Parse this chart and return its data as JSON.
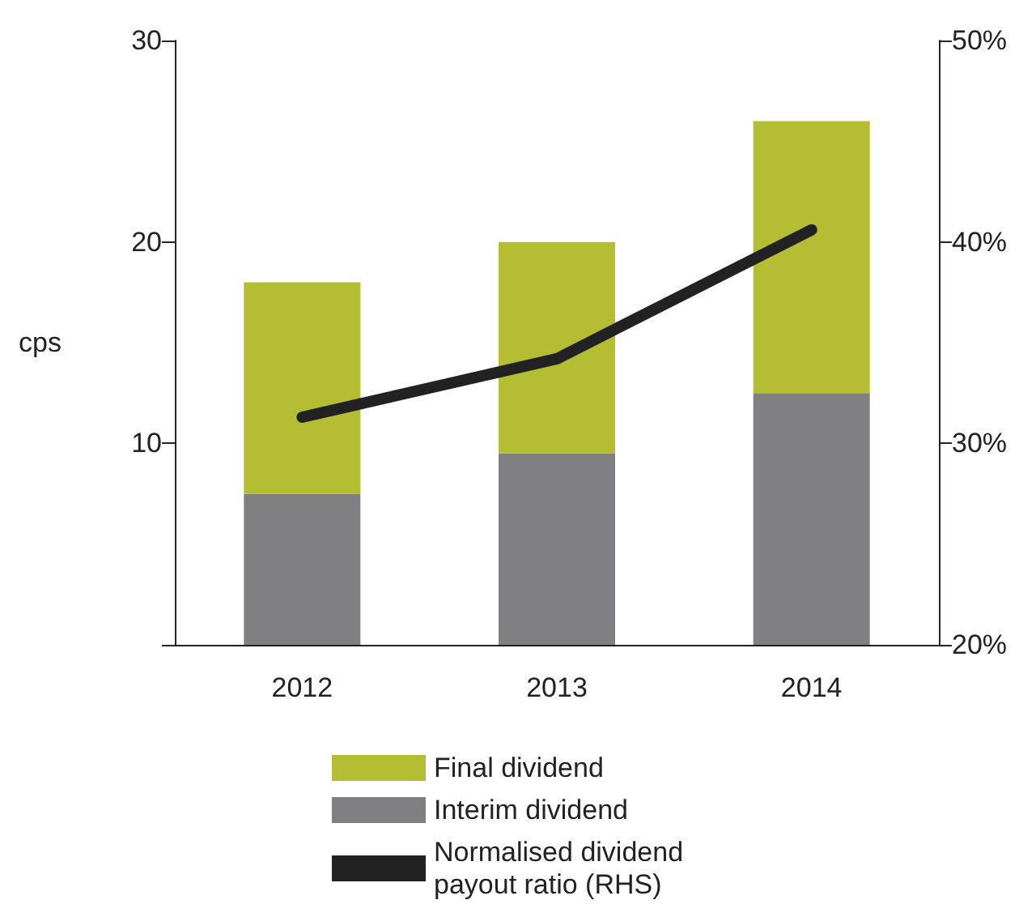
{
  "chart_data": {
    "type": "bar",
    "stacked": true,
    "categories": [
      "2012",
      "2013",
      "2014"
    ],
    "ylabel": "cps",
    "ylim": [
      0,
      30
    ],
    "yticks": [
      {
        "value": 0,
        "label": null
      },
      10,
      20,
      30
    ],
    "y2lim": [
      20,
      50
    ],
    "y2ticks": [
      {
        "value": 20,
        "label": "20%"
      },
      {
        "value": 30,
        "label": "30%"
      },
      {
        "value": 40,
        "label": "40%"
      },
      {
        "value": 50,
        "label": "50%"
      }
    ],
    "legend": "bottom",
    "grid": false,
    "series": [
      {
        "name": "Interim dividend",
        "color": "#808083",
        "values": [
          7.5,
          9.5,
          12.5
        ]
      },
      {
        "name": "Final dividend",
        "color": "#b5bd32",
        "values": [
          10.5,
          10.5,
          13.5
        ]
      },
      {
        "name": "Normalised dividend payout ratio (RHS)",
        "type": "line",
        "axis": "y2",
        "color": "#222222",
        "values": [
          31.3,
          34.2,
          40.6
        ]
      }
    ]
  }
}
